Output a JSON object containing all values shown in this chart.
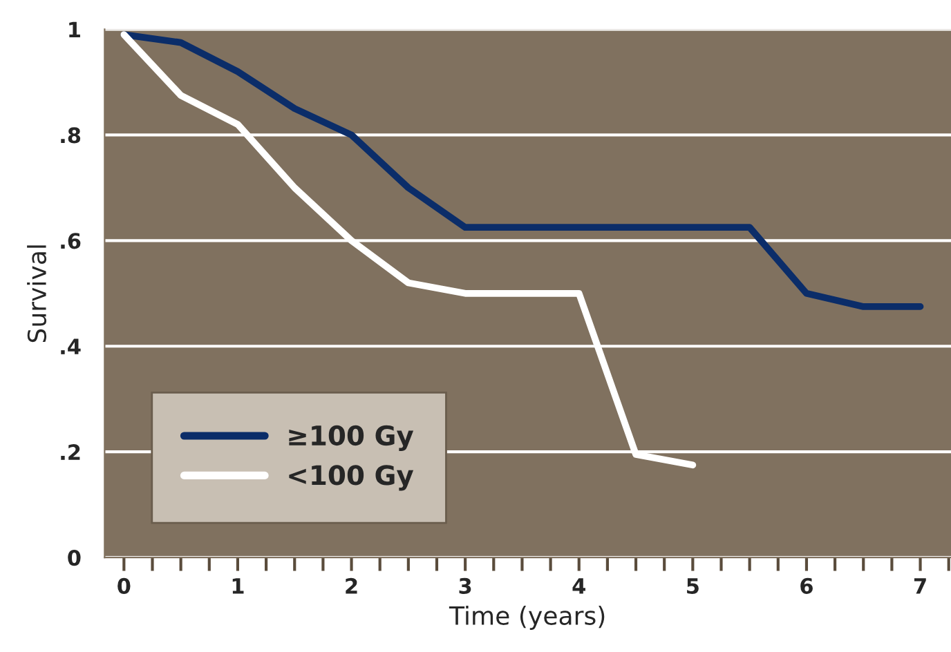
{
  "chart_data": {
    "type": "line",
    "xlabel": "Time (years)",
    "ylabel": "Survival",
    "x": [
      0,
      0.5,
      1,
      1.5,
      2,
      2.5,
      3,
      5.5,
      6,
      6.5,
      7
    ],
    "series": [
      {
        "name": "≥100 Gy",
        "color": "#0b2d69",
        "values": [
          0.99,
          0.975,
          0.92,
          0.85,
          0.8,
          0.7,
          0.625,
          0.625,
          0.5,
          0.475,
          0.475
        ]
      },
      {
        "name": "<100 Gy",
        "color": "#ffffff",
        "x": [
          0,
          0.5,
          1,
          1.5,
          2,
          2.5,
          3,
          4,
          4.5,
          5
        ],
        "values": [
          0.99,
          0.875,
          0.82,
          0.7,
          0.6,
          0.52,
          0.5,
          0.5,
          0.195,
          0.175
        ]
      }
    ],
    "xlim": [
      -0.17,
      7.27
    ],
    "ylim": [
      0,
      1
    ],
    "xticks": [
      0,
      {
        "value": 0.25,
        "label": null
      },
      {
        "value": 0.5,
        "label": null
      },
      {
        "value": 0.75,
        "label": null
      },
      1,
      {
        "value": 1.25,
        "label": null
      },
      {
        "value": 1.5,
        "label": null
      },
      {
        "value": 1.75,
        "label": null
      },
      2,
      {
        "value": 2.25,
        "label": null
      },
      {
        "value": 2.5,
        "label": null
      },
      {
        "value": 2.75,
        "label": null
      },
      3,
      {
        "value": 3.25,
        "label": null
      },
      {
        "value": 3.5,
        "label": null
      },
      {
        "value": 3.75,
        "label": null
      },
      4,
      {
        "value": 4.25,
        "label": null
      },
      {
        "value": 4.5,
        "label": null
      },
      {
        "value": 4.75,
        "label": null
      },
      5,
      {
        "value": 5.25,
        "label": null
      },
      {
        "value": 5.5,
        "label": null
      },
      {
        "value": 5.75,
        "label": null
      },
      6,
      {
        "value": 6.25,
        "label": null
      },
      {
        "value": 6.5,
        "label": null
      },
      {
        "value": 6.75,
        "label": null
      },
      7,
      {
        "value": 7.25,
        "label": null
      }
    ],
    "yticks": [
      {
        "value": 0,
        "label": "0"
      },
      {
        "value": 0.2,
        "label": ".2"
      },
      {
        "value": 0.4,
        "label": ".4"
      },
      {
        "value": 0.6,
        "label": ".6"
      },
      {
        "value": 0.8,
        "label": ".8"
      },
      {
        "value": 1,
        "label": "1"
      }
    ],
    "grid": "y",
    "legend": "bottom left",
    "marker": "none",
    "line_style": "solid"
  }
}
